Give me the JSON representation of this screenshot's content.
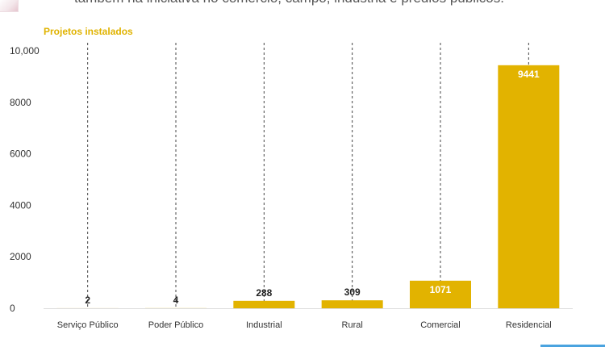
{
  "header": {
    "subtitle_text": "também na iniciativa no comércio, campo, indústria e prédios públicos."
  },
  "colors": {
    "bar": "#e2b300",
    "title": "#e0b300",
    "grid": "#444444",
    "axis": "#dddddd",
    "label_dark": "#222222",
    "label_light": "#ffffff"
  },
  "chart_data": {
    "type": "bar",
    "title": "Projetos instalados",
    "categories": [
      "Serviço Público",
      "Poder Público",
      "Industrial",
      "Rural",
      "Comercial",
      "Residencial"
    ],
    "values": [
      2,
      4,
      288,
      309,
      1071,
      9441
    ],
    "data_labels": [
      "2",
      "4",
      "288",
      "309",
      "1071",
      "9441"
    ],
    "xlabel": "",
    "ylabel": "",
    "ylim": [
      0,
      10000
    ],
    "yticks": [
      0,
      2000,
      4000,
      6000,
      8000,
      10000
    ],
    "ytick_labels": [
      "0",
      "2000",
      "4000",
      "6000",
      "8000",
      "10,000"
    ],
    "grid": "vertical dashed lines at categories",
    "legend": "none"
  }
}
